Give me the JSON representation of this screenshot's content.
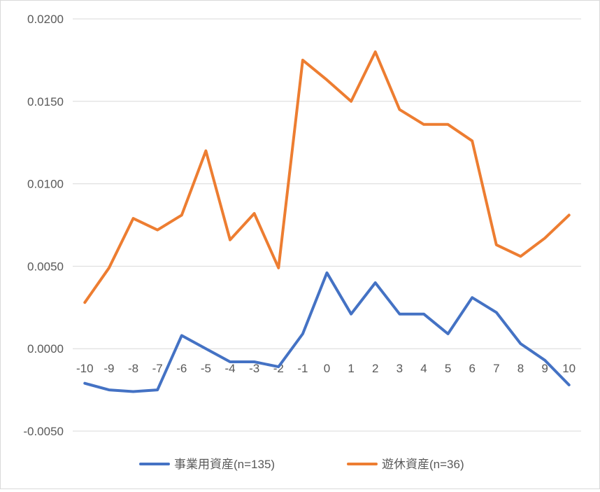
{
  "chart_data": {
    "type": "line",
    "x": [
      -10,
      -9,
      -8,
      -7,
      -6,
      -5,
      -4,
      -3,
      -2,
      -1,
      0,
      1,
      2,
      3,
      4,
      5,
      6,
      7,
      8,
      9,
      10
    ],
    "ylim": [
      -0.005,
      0.02
    ],
    "yticks": [
      "-0.0050",
      "0.0000",
      "0.0050",
      "0.0100",
      "0.0150",
      "0.0200"
    ],
    "xticks": [
      "-10",
      "-9",
      "-8",
      "-7",
      "-6",
      "-5",
      "-4",
      "-3",
      "-2",
      "-1",
      "0",
      "1",
      "2",
      "3",
      "4",
      "5",
      "6",
      "7",
      "8",
      "9",
      "10"
    ],
    "grid": true,
    "legend_position": "bottom",
    "series": [
      {
        "name": "事業用資産(n=135)",
        "color": "#4472C4",
        "values": [
          -0.0021,
          -0.0025,
          -0.0026,
          -0.0025,
          0.0008,
          -0.0,
          -0.0008,
          -0.0008,
          -0.0011,
          0.0009,
          0.0046,
          0.0021,
          0.004,
          0.0021,
          0.0021,
          0.0009,
          0.0031,
          0.0022,
          0.0003,
          -0.0007,
          -0.0022
        ]
      },
      {
        "name": "遊休資産(n=36)",
        "color": "#ED7D31",
        "values": [
          0.0028,
          0.0049,
          0.0079,
          0.0072,
          0.0081,
          0.012,
          0.0066,
          0.0082,
          0.0049,
          0.0175,
          0.0163,
          0.015,
          0.018,
          0.0145,
          0.0136,
          0.0136,
          0.0126,
          0.0063,
          0.0056,
          0.0067,
          0.0081
        ]
      }
    ]
  }
}
